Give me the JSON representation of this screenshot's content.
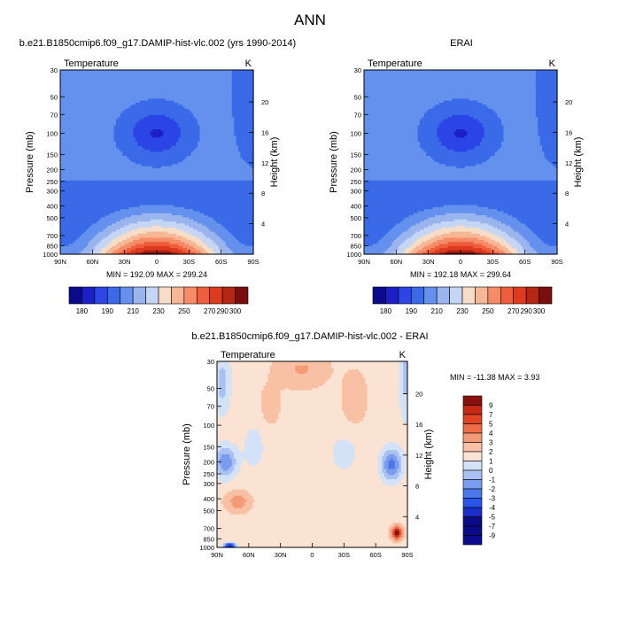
{
  "figure": {
    "title": "ANN",
    "panel_left_header": "b.e21.B1850cmip6.f09_g17.DAMIP-hist-vlc.002 (yrs 1990-2014)",
    "panel_right_header": "ERAI",
    "panel_bottom_header": "b.e21.B1850cmip6.f09_g17.DAMIP-hist-vlc.002 - ERAI"
  },
  "colors": {
    "abs_levels": [
      "#0a0a8a",
      "#1b1fc4",
      "#2b45e6",
      "#3a6ae8",
      "#6490ee",
      "#9ab4ee",
      "#c5d6f4",
      "#f5ddc8",
      "#f6b795",
      "#f58c67",
      "#ef5e3c",
      "#de3a20",
      "#b52613",
      "#7a0d0d"
    ],
    "diff_levels": [
      "#0a0a8a",
      "#1b2fc8",
      "#2b55e8",
      "#4a78ea",
      "#7a9cee",
      "#a9c0f2",
      "#d3e2f6",
      "#fbe3d3",
      "#f8c1a5",
      "#f59a77",
      "#ee6c48",
      "#e04424",
      "#c52a17",
      "#8a0f0f"
    ]
  },
  "chart_data": [
    {
      "type": "heatmap",
      "title": "b.e21.B1850cmip6.f09_g17.DAMIP-hist-vlc.002 (yrs 1990-2014)",
      "left_label": "Temperature",
      "unit": "K",
      "xlabel": "",
      "ylabel": "Pressure (mb)",
      "right_axis_label": "Height (km)",
      "x_ticks": [
        "90N",
        "60N",
        "30N",
        "0",
        "30S",
        "60S",
        "90S"
      ],
      "y_ticks": [
        "30",
        "50",
        "70",
        "100",
        "150",
        "200",
        "250",
        "300",
        "400",
        "500",
        "700",
        "850",
        "1000"
      ],
      "right_ticks": [
        "20",
        "16",
        "12",
        "8",
        "4"
      ],
      "stats": "MIN = 192.09   MAX = 299.24",
      "min": 192.09,
      "max": 299.24,
      "colorbar_labels": [
        "180",
        "190",
        "210",
        "230",
        "250",
        "270",
        "290",
        "300"
      ],
      "levels": [
        175,
        180,
        185,
        190,
        200,
        210,
        220,
        230,
        240,
        250,
        260,
        270,
        280,
        290,
        295,
        300
      ]
    },
    {
      "type": "heatmap",
      "title": "ERAI",
      "left_label": "Temperature",
      "unit": "K",
      "xlabel": "",
      "ylabel": "Pressure (mb)",
      "right_axis_label": "Height (km)",
      "x_ticks": [
        "90N",
        "60N",
        "30N",
        "0",
        "30S",
        "60S",
        "90S"
      ],
      "y_ticks": [
        "30",
        "50",
        "70",
        "100",
        "150",
        "200",
        "250",
        "300",
        "400",
        "500",
        "700",
        "850",
        "1000"
      ],
      "right_ticks": [
        "20",
        "16",
        "12",
        "8",
        "4"
      ],
      "stats": "MIN = 192.18   MAX = 299.64",
      "min": 192.18,
      "max": 299.64,
      "colorbar_labels": [
        "180",
        "190",
        "210",
        "230",
        "250",
        "270",
        "290",
        "300"
      ],
      "levels": [
        175,
        180,
        185,
        190,
        200,
        210,
        220,
        230,
        240,
        250,
        260,
        270,
        280,
        290,
        295,
        300
      ]
    },
    {
      "type": "heatmap",
      "title": "b.e21.B1850cmip6.f09_g17.DAMIP-hist-vlc.002 - ERAI",
      "left_label": "Temperature",
      "unit": "K",
      "xlabel": "",
      "ylabel": "Pressure (mb)",
      "right_axis_label": "Height (km)",
      "x_ticks": [
        "90N",
        "60N",
        "30N",
        "0",
        "30S",
        "60S",
        "90S"
      ],
      "y_ticks": [
        "30",
        "50",
        "70",
        "100",
        "150",
        "200",
        "250",
        "300",
        "400",
        "500",
        "700",
        "850",
        "1000"
      ],
      "right_ticks": [
        "20",
        "16",
        "12",
        "8",
        "4"
      ],
      "stats": "MIN = -11.38  MAX =   3.93",
      "min": -11.38,
      "max": 3.93,
      "colorbar_labels": [
        "9",
        "7",
        "5",
        "4",
        "3",
        "2",
        "1",
        "0",
        "-1",
        "-2",
        "-3",
        "-4",
        "-5",
        "-7",
        "-9"
      ],
      "levels": [
        -9,
        -7,
        -5,
        -4,
        -3,
        -2,
        -1,
        0,
        1,
        2,
        3,
        4,
        5,
        7,
        9
      ]
    }
  ]
}
